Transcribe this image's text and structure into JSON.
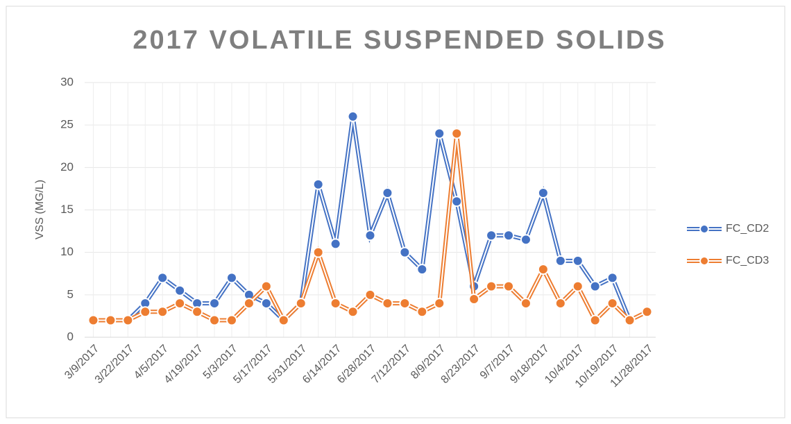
{
  "chart_data": {
    "type": "line",
    "title": "2017 VOLATILE SUSPENDED SOLIDS",
    "y_label": "VSS (MG/L)",
    "categories": [
      "3/9/2017",
      null,
      "3/22/2017",
      null,
      "4/5/2017",
      null,
      "4/19/2017",
      null,
      "5/3/2017",
      null,
      "5/17/2017",
      null,
      "5/31/2017",
      null,
      "6/14/2017",
      null,
      "6/28/2017",
      null,
      "7/12/2017",
      null,
      "8/9/2017",
      null,
      "8/23/2017",
      null,
      "9/7/2017",
      null,
      "9/18/2017",
      null,
      "10/4/2017",
      null,
      "10/19/2017",
      null,
      "11/28/2017"
    ],
    "series": [
      {
        "name": "FC_CD2",
        "color": "#4472c4",
        "values": [
          2,
          2,
          2,
          4,
          7,
          5.5,
          4,
          4,
          7,
          5,
          4,
          2,
          4,
          18,
          11,
          26,
          12,
          17,
          10,
          8,
          24,
          16,
          6,
          12,
          12,
          11.5,
          17,
          9,
          9,
          6,
          7,
          2,
          null
        ]
      },
      {
        "name": "FC_CD3",
        "color": "#ed7d31",
        "values": [
          2,
          2,
          2,
          3,
          3,
          4,
          3,
          2,
          2,
          4,
          6,
          2,
          4,
          10,
          4,
          3,
          5,
          4,
          4,
          3,
          4,
          24,
          4.5,
          6,
          6,
          4,
          8,
          4,
          6,
          2,
          4,
          2,
          3
        ]
      }
    ],
    "ylim": [
      0,
      30
    ],
    "yticks": [
      0,
      5,
      10,
      15,
      20,
      25,
      30
    ],
    "grid": true,
    "legend": "right"
  }
}
